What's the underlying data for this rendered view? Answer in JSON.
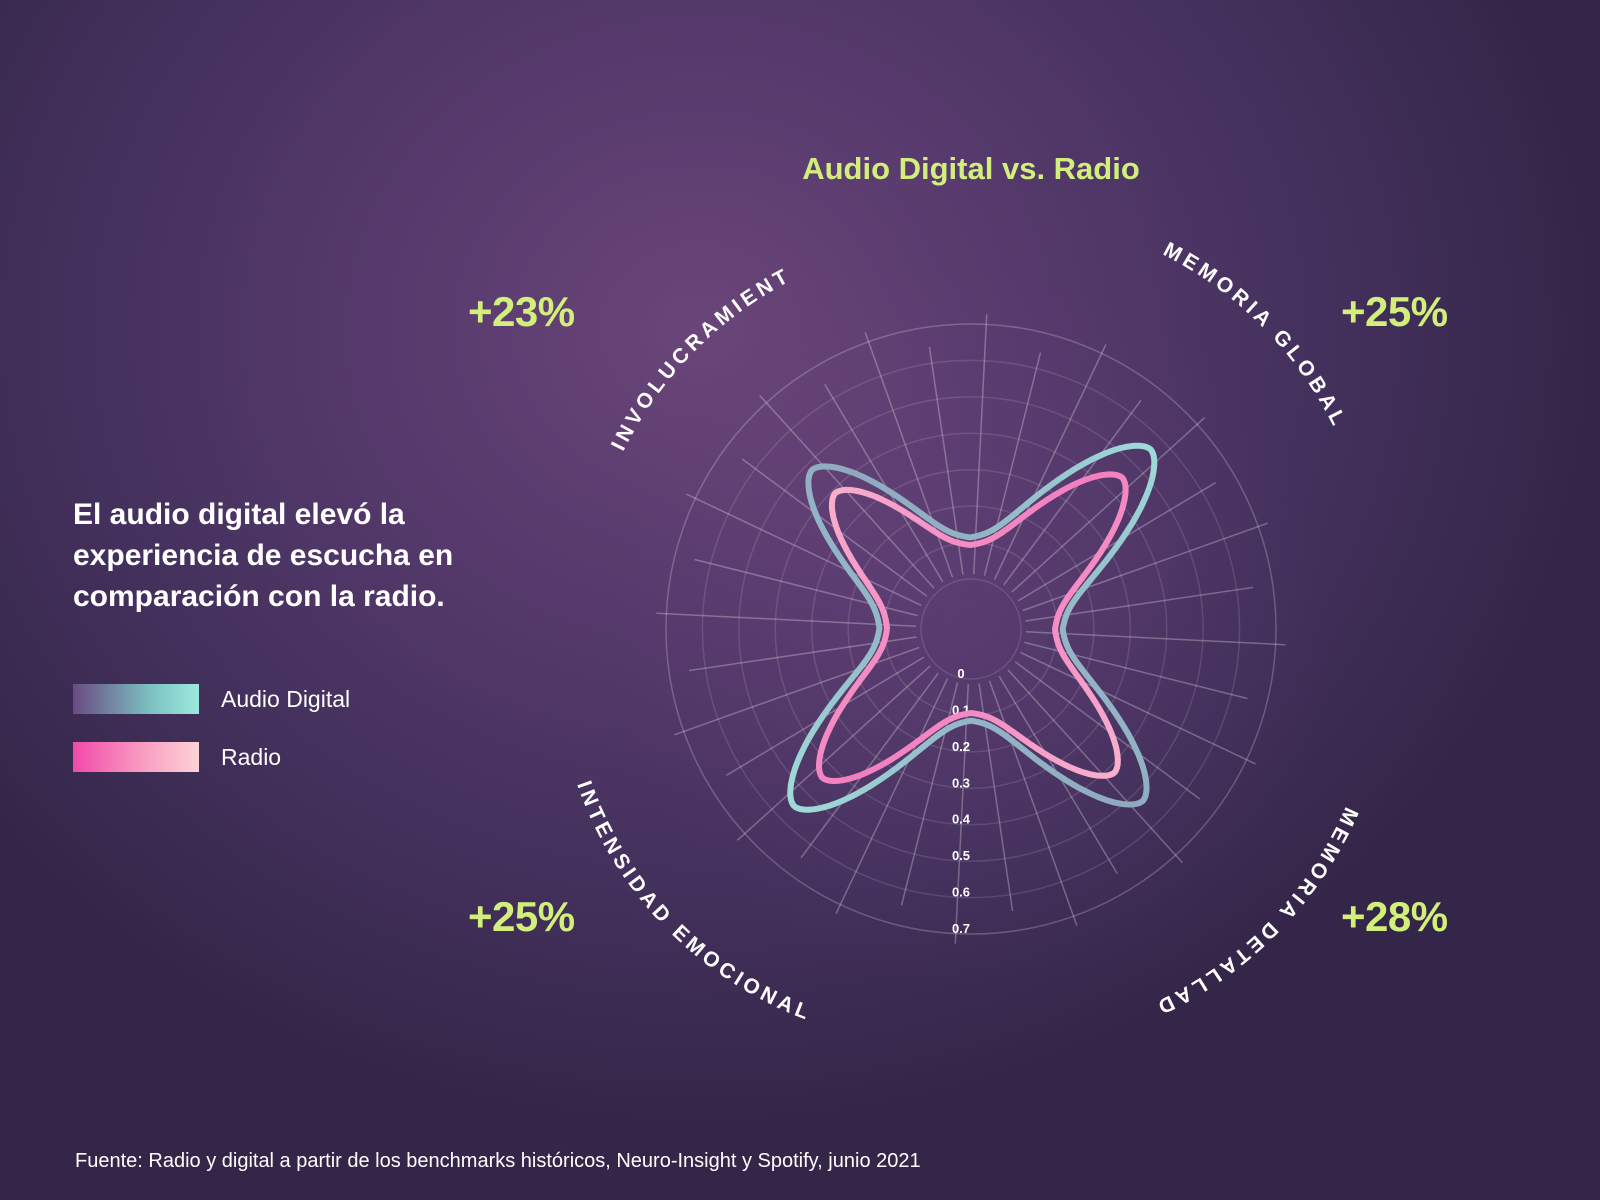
{
  "headline": "El audio digital elevó la experiencia de escucha en comparación con la radio.",
  "legend": [
    {
      "label": "Audio Digital",
      "color_start": "#6a4a82",
      "color_end": "#9de9dd"
    },
    {
      "label": "Radio",
      "color_start": "#f04aa9",
      "color_end": "#fcd2d6"
    }
  ],
  "footnote": "Fuente: Radio y digital a partir de los benchmarks históricos, Neuro-Insight y Spotify, junio 2021",
  "colors": {
    "accent": "#d2ef7c",
    "digital": "#9de9dd",
    "radio": "#f7a9c8"
  },
  "chart_data": {
    "type": "radar",
    "title": "Audio Digital vs. Radio",
    "axis": {
      "min": 0,
      "max": 0.7,
      "ticks": [
        "0",
        "0.1",
        "0.2",
        "0.3",
        "0.4",
        "0.5",
        "0.6",
        "0.7"
      ]
    },
    "categories": [
      "INVOLUCRAMIENTO",
      "MEMORIA GLOBAL",
      "MEMORIA DETALLADA",
      "INTENSIDAD EMOCIONAL"
    ],
    "uplift": [
      "+23%",
      "+25%",
      "+28%",
      "+25%"
    ],
    "series": [
      {
        "name": "Audio Digital",
        "values": [
          0.48,
          0.56,
          0.53,
          0.55
        ]
      },
      {
        "name": "Radio",
        "values": [
          0.39,
          0.45,
          0.42,
          0.44
        ]
      }
    ]
  }
}
